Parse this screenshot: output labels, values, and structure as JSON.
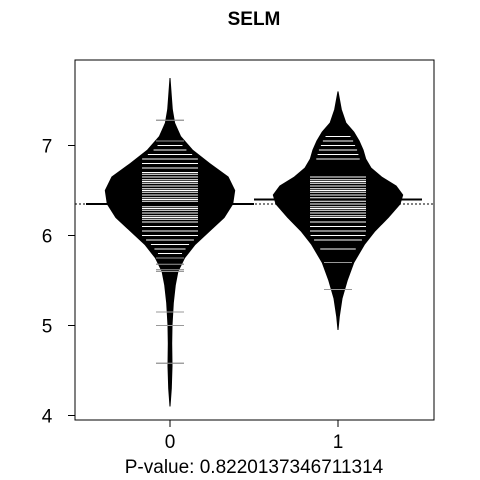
{
  "chart_data": {
    "type": "beanplot",
    "title": "SELM",
    "xlabel": "P-value: 0.8220137346711314",
    "ylabel": "",
    "categories": [
      "0",
      "1"
    ],
    "ylim": [
      3.95,
      7.95
    ],
    "yticks": [
      4,
      5,
      6,
      7
    ],
    "overall_mean": 6.35,
    "colors": {
      "bean": "#000000",
      "line": "#ffffff"
    },
    "beans": [
      {
        "category": "0",
        "mean": 6.35,
        "min": 4.1,
        "max": 7.75,
        "density_profile": [
          [
            4.1,
            0.0
          ],
          [
            4.3,
            0.02
          ],
          [
            4.55,
            0.03
          ],
          [
            4.8,
            0.025
          ],
          [
            5.0,
            0.03
          ],
          [
            5.25,
            0.05
          ],
          [
            5.45,
            0.08
          ],
          [
            5.6,
            0.12
          ],
          [
            5.75,
            0.22
          ],
          [
            5.9,
            0.38
          ],
          [
            6.05,
            0.6
          ],
          [
            6.2,
            0.82
          ],
          [
            6.35,
            0.95
          ],
          [
            6.5,
            0.98
          ],
          [
            6.65,
            0.88
          ],
          [
            6.8,
            0.6
          ],
          [
            6.95,
            0.34
          ],
          [
            7.1,
            0.16
          ],
          [
            7.25,
            0.07
          ],
          [
            7.4,
            0.035
          ],
          [
            7.55,
            0.02
          ],
          [
            7.75,
            0.0
          ]
        ],
        "observations": [
          4.58,
          5.0,
          5.15,
          5.6,
          5.62,
          5.68,
          5.75,
          5.8,
          5.85,
          5.9,
          5.95,
          6.0,
          6.05,
          6.1,
          6.15,
          6.18,
          6.2,
          6.22,
          6.25,
          6.28,
          6.3,
          6.32,
          6.35,
          6.38,
          6.4,
          6.42,
          6.45,
          6.48,
          6.5,
          6.52,
          6.55,
          6.58,
          6.6,
          6.62,
          6.65,
          6.68,
          6.7,
          6.75,
          6.8,
          6.85,
          6.9,
          6.95,
          7.0,
          7.05,
          7.28
        ]
      },
      {
        "category": "1",
        "mean": 6.4,
        "min": 4.95,
        "max": 7.6,
        "density_profile": [
          [
            4.95,
            0.0
          ],
          [
            5.1,
            0.02
          ],
          [
            5.3,
            0.06
          ],
          [
            5.5,
            0.14
          ],
          [
            5.7,
            0.24
          ],
          [
            5.9,
            0.4
          ],
          [
            6.05,
            0.56
          ],
          [
            6.2,
            0.76
          ],
          [
            6.35,
            0.94
          ],
          [
            6.45,
            0.98
          ],
          [
            6.55,
            0.88
          ],
          [
            6.65,
            0.66
          ],
          [
            6.75,
            0.5
          ],
          [
            6.85,
            0.42
          ],
          [
            6.95,
            0.38
          ],
          [
            7.05,
            0.32
          ],
          [
            7.15,
            0.24
          ],
          [
            7.25,
            0.12
          ],
          [
            7.4,
            0.05
          ],
          [
            7.6,
            0.0
          ]
        ],
        "observations": [
          5.4,
          5.7,
          5.85,
          5.95,
          6.0,
          6.05,
          6.1,
          6.15,
          6.2,
          6.22,
          6.25,
          6.28,
          6.3,
          6.32,
          6.35,
          6.38,
          6.4,
          6.42,
          6.45,
          6.48,
          6.5,
          6.52,
          6.55,
          6.58,
          6.6,
          6.62,
          6.65,
          6.85,
          6.9,
          6.95,
          7.0,
          7.05,
          7.1
        ]
      }
    ]
  }
}
